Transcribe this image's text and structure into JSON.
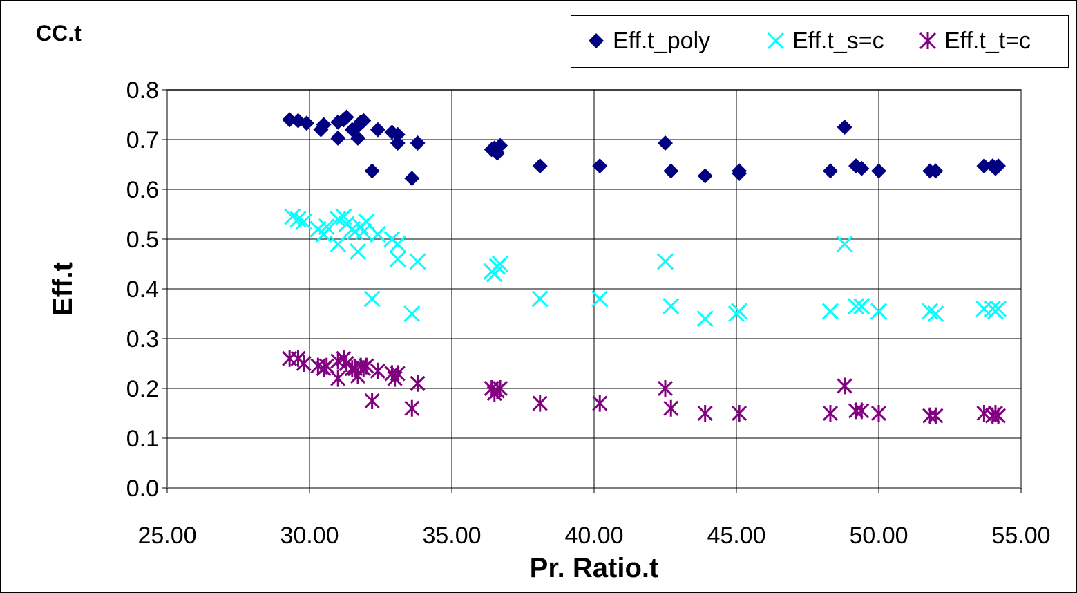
{
  "chart_data": {
    "type": "scatter",
    "title": "CC.t",
    "xlabel": "Pr. Ratio.t",
    "ylabel": "Eff.t",
    "xlim": [
      25,
      55
    ],
    "ylim": [
      0,
      0.8
    ],
    "x_ticks": [
      "25.00",
      "30.00",
      "35.00",
      "40.00",
      "45.00",
      "50.00",
      "55.00"
    ],
    "y_ticks": [
      "0.0",
      "0.1",
      "0.2",
      "0.3",
      "0.4",
      "0.5",
      "0.6",
      "0.7",
      "0.8"
    ],
    "grid": true,
    "legend_position": "top-right",
    "series": [
      {
        "name": "Eff.t_poly",
        "marker": "diamond",
        "color": "#000080",
        "points": [
          [
            29.3,
            0.74
          ],
          [
            29.6,
            0.738
          ],
          [
            29.9,
            0.733
          ],
          [
            30.4,
            0.72
          ],
          [
            30.5,
            0.73
          ],
          [
            31.0,
            0.735
          ],
          [
            31.0,
            0.703
          ],
          [
            31.2,
            0.74
          ],
          [
            31.3,
            0.745
          ],
          [
            31.5,
            0.72
          ],
          [
            31.7,
            0.727
          ],
          [
            31.7,
            0.703
          ],
          [
            31.8,
            0.735
          ],
          [
            31.9,
            0.738
          ],
          [
            32.2,
            0.637
          ],
          [
            32.4,
            0.72
          ],
          [
            32.9,
            0.715
          ],
          [
            33.1,
            0.693
          ],
          [
            33.1,
            0.71
          ],
          [
            33.6,
            0.622
          ],
          [
            33.8,
            0.693
          ],
          [
            36.4,
            0.68
          ],
          [
            36.5,
            0.683
          ],
          [
            36.6,
            0.673
          ],
          [
            36.7,
            0.688
          ],
          [
            38.1,
            0.647
          ],
          [
            40.2,
            0.647
          ],
          [
            42.5,
            0.693
          ],
          [
            42.7,
            0.637
          ],
          [
            43.9,
            0.627
          ],
          [
            45.1,
            0.632
          ],
          [
            45.1,
            0.637
          ],
          [
            48.3,
            0.637
          ],
          [
            48.8,
            0.725
          ],
          [
            49.2,
            0.647
          ],
          [
            49.4,
            0.642
          ],
          [
            50.0,
            0.637
          ],
          [
            51.8,
            0.637
          ],
          [
            52.0,
            0.637
          ],
          [
            53.7,
            0.647
          ],
          [
            54.0,
            0.647
          ],
          [
            54.1,
            0.642
          ],
          [
            54.2,
            0.647
          ]
        ]
      },
      {
        "name": "Eff.t_s=c",
        "marker": "x",
        "color": "#00FFFF",
        "points": [
          [
            29.4,
            0.545
          ],
          [
            29.6,
            0.54
          ],
          [
            29.8,
            0.535
          ],
          [
            30.3,
            0.52
          ],
          [
            30.5,
            0.51
          ],
          [
            30.6,
            0.525
          ],
          [
            31.0,
            0.54
          ],
          [
            31.0,
            0.49
          ],
          [
            31.2,
            0.545
          ],
          [
            31.3,
            0.53
          ],
          [
            31.5,
            0.52
          ],
          [
            31.6,
            0.515
          ],
          [
            31.7,
            0.475
          ],
          [
            31.8,
            0.525
          ],
          [
            31.9,
            0.515
          ],
          [
            32.0,
            0.535
          ],
          [
            32.2,
            0.38
          ],
          [
            32.4,
            0.51
          ],
          [
            32.9,
            0.5
          ],
          [
            33.1,
            0.46
          ],
          [
            33.1,
            0.49
          ],
          [
            33.6,
            0.35
          ],
          [
            33.8,
            0.455
          ],
          [
            36.4,
            0.435
          ],
          [
            36.5,
            0.43
          ],
          [
            36.6,
            0.445
          ],
          [
            36.7,
            0.45
          ],
          [
            38.1,
            0.38
          ],
          [
            40.2,
            0.38
          ],
          [
            42.5,
            0.455
          ],
          [
            42.7,
            0.365
          ],
          [
            43.9,
            0.34
          ],
          [
            45.0,
            0.35
          ],
          [
            45.1,
            0.355
          ],
          [
            48.3,
            0.355
          ],
          [
            48.8,
            0.49
          ],
          [
            49.2,
            0.365
          ],
          [
            49.4,
            0.365
          ],
          [
            50.0,
            0.355
          ],
          [
            51.8,
            0.355
          ],
          [
            52.0,
            0.35
          ],
          [
            53.7,
            0.36
          ],
          [
            54.0,
            0.36
          ],
          [
            54.1,
            0.355
          ],
          [
            54.2,
            0.36
          ]
        ]
      },
      {
        "name": "Eff.t_t=c",
        "marker": "asterisk",
        "color": "#800080",
        "points": [
          [
            29.3,
            0.26
          ],
          [
            29.6,
            0.26
          ],
          [
            29.8,
            0.25
          ],
          [
            30.3,
            0.245
          ],
          [
            30.5,
            0.24
          ],
          [
            30.6,
            0.245
          ],
          [
            31.0,
            0.255
          ],
          [
            31.0,
            0.22
          ],
          [
            31.2,
            0.26
          ],
          [
            31.3,
            0.25
          ],
          [
            31.5,
            0.24
          ],
          [
            31.6,
            0.24
          ],
          [
            31.7,
            0.225
          ],
          [
            31.8,
            0.245
          ],
          [
            31.9,
            0.24
          ],
          [
            32.0,
            0.245
          ],
          [
            32.2,
            0.175
          ],
          [
            32.4,
            0.235
          ],
          [
            32.9,
            0.23
          ],
          [
            33.0,
            0.22
          ],
          [
            33.1,
            0.23
          ],
          [
            33.6,
            0.16
          ],
          [
            33.8,
            0.21
          ],
          [
            36.4,
            0.2
          ],
          [
            36.5,
            0.19
          ],
          [
            36.6,
            0.195
          ],
          [
            36.7,
            0.2
          ],
          [
            38.1,
            0.17
          ],
          [
            40.2,
            0.17
          ],
          [
            42.5,
            0.2
          ],
          [
            42.7,
            0.16
          ],
          [
            43.9,
            0.15
          ],
          [
            45.1,
            0.15
          ],
          [
            48.3,
            0.15
          ],
          [
            48.8,
            0.205
          ],
          [
            49.2,
            0.155
          ],
          [
            49.4,
            0.155
          ],
          [
            50.0,
            0.15
          ],
          [
            51.8,
            0.145
          ],
          [
            52.0,
            0.145
          ],
          [
            53.7,
            0.15
          ],
          [
            54.0,
            0.145
          ],
          [
            54.1,
            0.15
          ],
          [
            54.2,
            0.145
          ]
        ]
      }
    ]
  }
}
